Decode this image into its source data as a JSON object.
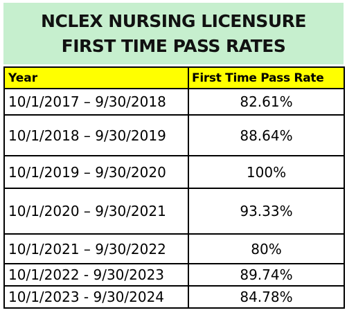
{
  "title": {
    "line1": "NCLEX NURSING LICENSURE",
    "line2": "FIRST TIME PASS RATES"
  },
  "colors": {
    "title_background": "#c6efce",
    "header_background": "#ffff00",
    "border": "#000000"
  },
  "table": {
    "headers": {
      "year": "Year",
      "rate": "First Time Pass Rate"
    },
    "rows": [
      {
        "year": "10/1/2017 – 9/30/2018",
        "rate": "82.61%"
      },
      {
        "year": "10/1/2018 – 9/30/2019",
        "rate": "88.64%"
      },
      {
        "year": "10/1/2019 – 9/30/2020",
        "rate": "100%"
      },
      {
        "year": "10/1/2020 – 9/30/2021",
        "rate": "93.33%"
      },
      {
        "year": "10/1/2021 – 9/30/2022",
        "rate": "80%"
      },
      {
        "year": "10/1/2022 - 9/30/2023",
        "rate": "89.74%"
      },
      {
        "year": "10/1/2023 - 9/30/2024",
        "rate": "84.78%"
      }
    ]
  }
}
